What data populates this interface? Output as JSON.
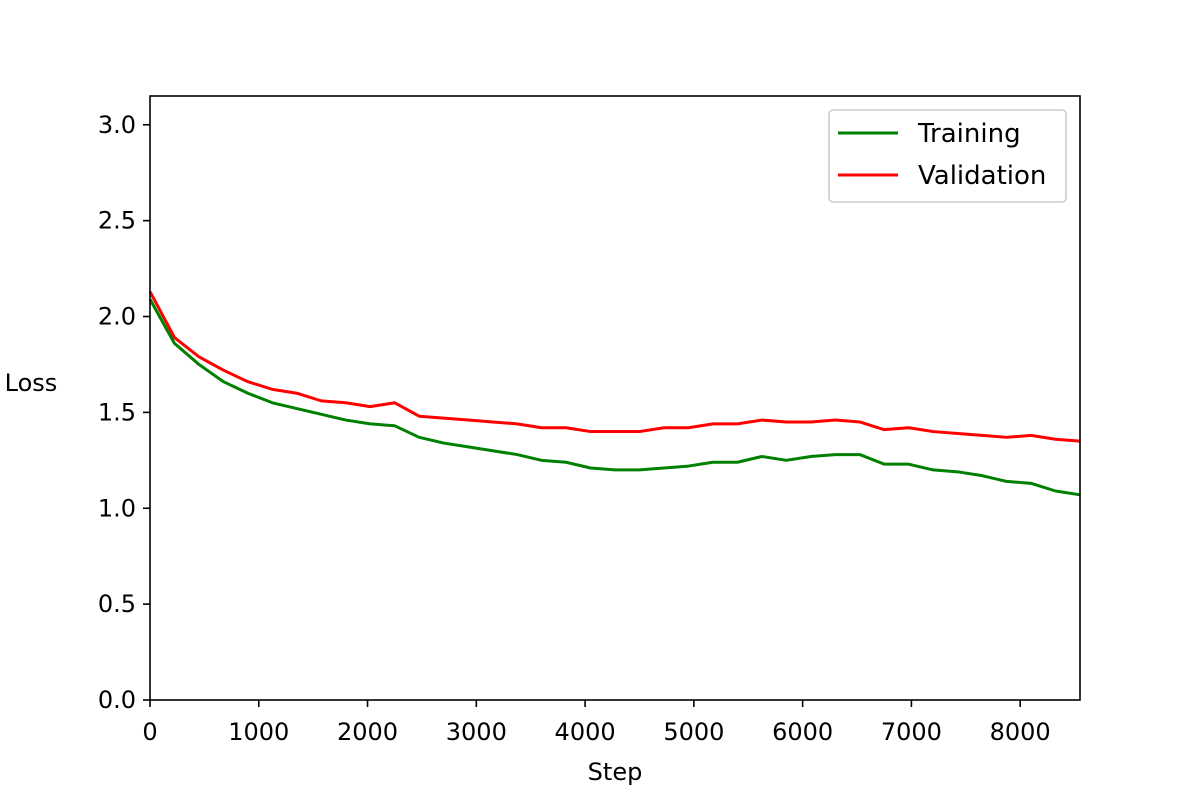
{
  "chart_data": {
    "type": "line",
    "title": "",
    "xlabel": "Step",
    "ylabel": "Loss",
    "xlim": [
      0,
      8550
    ],
    "ylim": [
      0.0,
      3.15
    ],
    "xticks": [
      0,
      1000,
      2000,
      3000,
      4000,
      5000,
      6000,
      7000,
      8000
    ],
    "xtick_labels": [
      "0",
      "1000",
      "2000",
      "3000",
      "4000",
      "5000",
      "6000",
      "7000",
      "8000"
    ],
    "yticks": [
      0.0,
      0.5,
      1.0,
      1.5,
      2.0,
      2.5,
      3.0
    ],
    "ytick_labels": [
      "0.0",
      "0.5",
      "1.0",
      "1.5",
      "2.0",
      "2.5",
      "3.0"
    ],
    "grid": false,
    "legend_position": "top-right",
    "x": [
      0,
      225,
      450,
      675,
      900,
      1125,
      1350,
      1575,
      1800,
      2025,
      2250,
      2475,
      2700,
      2925,
      3150,
      3375,
      3600,
      3825,
      4050,
      4275,
      4500,
      4725,
      4950,
      5175,
      5400,
      5625,
      5850,
      6075,
      6300,
      6525,
      6750,
      6975,
      7200,
      7425,
      7650,
      7875,
      8100,
      8325,
      8550
    ],
    "series": [
      {
        "name": "Training",
        "color": "#008000",
        "values": [
          2.09,
          1.86,
          1.75,
          1.66,
          1.6,
          1.55,
          1.52,
          1.49,
          1.46,
          1.44,
          1.43,
          1.37,
          1.34,
          1.32,
          1.3,
          1.28,
          1.25,
          1.24,
          1.21,
          1.2,
          1.2,
          1.21,
          1.22,
          1.24,
          1.24,
          1.27,
          1.25,
          1.27,
          1.28,
          1.28,
          1.23,
          1.23,
          1.2,
          1.19,
          1.17,
          1.14,
          1.13,
          1.09,
          1.07
        ]
      },
      {
        "name": "Validation",
        "color": "#ff0000",
        "values": [
          2.13,
          1.89,
          1.79,
          1.72,
          1.66,
          1.62,
          1.6,
          1.56,
          1.55,
          1.53,
          1.55,
          1.48,
          1.47,
          1.46,
          1.45,
          1.44,
          1.42,
          1.42,
          1.4,
          1.4,
          1.4,
          1.42,
          1.42,
          1.44,
          1.44,
          1.46,
          1.45,
          1.45,
          1.46,
          1.45,
          1.41,
          1.42,
          1.4,
          1.39,
          1.38,
          1.37,
          1.38,
          1.36,
          1.35
        ]
      }
    ]
  }
}
